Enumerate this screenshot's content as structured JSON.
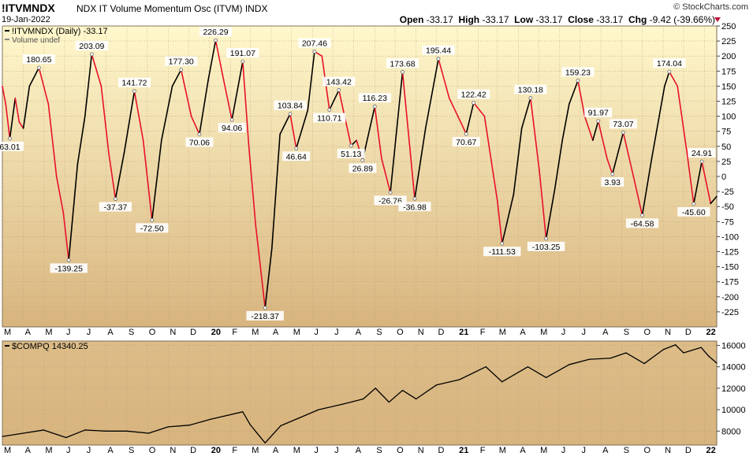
{
  "header": {
    "symbol": "!ITVMNDX",
    "description": "NDX IT Volume Momentum Osc (ITVM)  INDX",
    "date": "19-Jan-2022",
    "credit": "© StockCharts.com",
    "open_label": "Open",
    "open": "-33.17",
    "high_label": "High",
    "high": "-33.17",
    "low_label": "Low",
    "low": "-33.17",
    "close_label": "Close",
    "close": "-33.17",
    "chg_label": "Chg",
    "chg": "-9.42 (-39.66%)"
  },
  "colors": {
    "panel_top": "#fff8cc",
    "panel_bottom": "#d8b47e",
    "rising": "#000000",
    "falling": "#e8102a",
    "grid": "#b8a07a"
  },
  "chart_data": [
    {
      "type": "line",
      "legend": [
        "!ITVMNDX (Daily) -33.17",
        "Volume undef"
      ],
      "ylim": [
        -250,
        250
      ],
      "yticks": [
        250,
        225,
        200,
        175,
        150,
        125,
        100,
        75,
        50,
        25,
        0,
        -25,
        -50,
        -75,
        -100,
        -125,
        -150,
        -175,
        -200,
        -225
      ],
      "xticks": [
        "M",
        "A",
        "M",
        "J",
        "J",
        "A",
        "S",
        "O",
        "N",
        "D",
        "20",
        "F",
        "M",
        "A",
        "M",
        "J",
        "J",
        "A",
        "S",
        "O",
        "N",
        "D",
        "21",
        "F",
        "M",
        "A",
        "M",
        "J",
        "J",
        "A",
        "S",
        "O",
        "N",
        "D",
        "22"
      ],
      "x_start": "2019-03-01",
      "x_end": "2022-01-19",
      "series": [
        {
          "points": [
            [
              "2019-03-01",
              150
            ],
            [
              "2019-03-06",
              120
            ],
            [
              "2019-03-12",
              63.01
            ],
            [
              "2019-03-20",
              130
            ],
            [
              "2019-03-26",
              90
            ],
            [
              "2019-04-01",
              80
            ],
            [
              "2019-04-10",
              150
            ],
            [
              "2019-04-24",
              180.65
            ],
            [
              "2019-05-08",
              120
            ],
            [
              "2019-05-20",
              0
            ],
            [
              "2019-05-30",
              -60
            ],
            [
              "2019-06-07",
              -139.25
            ],
            [
              "2019-06-20",
              20
            ],
            [
              "2019-07-01",
              100
            ],
            [
              "2019-07-11",
              203.09
            ],
            [
              "2019-07-25",
              150
            ],
            [
              "2019-08-05",
              40
            ],
            [
              "2019-08-15",
              -37.37
            ],
            [
              "2019-08-28",
              40
            ],
            [
              "2019-09-12",
              141.72
            ],
            [
              "2019-09-25",
              60
            ],
            [
              "2019-10-08",
              -72.5
            ],
            [
              "2019-10-22",
              60
            ],
            [
              "2019-11-07",
              150
            ],
            [
              "2019-11-20",
              177.3
            ],
            [
              "2019-12-05",
              100
            ],
            [
              "2019-12-17",
              70.06
            ],
            [
              "2019-12-30",
              160
            ],
            [
              "2020-01-10",
              226.29
            ],
            [
              "2020-01-20",
              170
            ],
            [
              "2020-02-03",
              94.06
            ],
            [
              "2020-02-19",
              191.07
            ],
            [
              "2020-02-28",
              50
            ],
            [
              "2020-03-09",
              -80
            ],
            [
              "2020-03-23",
              -218.37
            ],
            [
              "2020-04-02",
              -120
            ],
            [
              "2020-04-14",
              70
            ],
            [
              "2020-04-29",
              103.84
            ],
            [
              "2020-05-08",
              46.64
            ],
            [
              "2020-05-25",
              110
            ],
            [
              "2020-06-04",
              207.46
            ],
            [
              "2020-06-15",
              200
            ],
            [
              "2020-06-26",
              110.71
            ],
            [
              "2020-07-10",
              143.42
            ],
            [
              "2020-07-28",
              51.13
            ],
            [
              "2020-08-05",
              60
            ],
            [
              "2020-08-14",
              26.89
            ],
            [
              "2020-09-01",
              116.23
            ],
            [
              "2020-09-11",
              30
            ],
            [
              "2020-09-24",
              -26.76
            ],
            [
              "2020-10-12",
              173.68
            ],
            [
              "2020-10-30",
              -36.98
            ],
            [
              "2020-11-15",
              80
            ],
            [
              "2020-12-04",
              195.44
            ],
            [
              "2020-12-20",
              130
            ],
            [
              "2021-01-06",
              90
            ],
            [
              "2021-01-14",
              70.67
            ],
            [
              "2021-01-25",
              122.42
            ],
            [
              "2021-02-10",
              100
            ],
            [
              "2021-03-01",
              -40
            ],
            [
              "2021-03-08",
              -111.53
            ],
            [
              "2021-03-25",
              -30
            ],
            [
              "2021-04-06",
              80
            ],
            [
              "2021-04-19",
              130.18
            ],
            [
              "2021-05-02",
              10
            ],
            [
              "2021-05-12",
              -103.25
            ],
            [
              "2021-05-25",
              -20
            ],
            [
              "2021-06-05",
              60
            ],
            [
              "2021-06-15",
              120
            ],
            [
              "2021-06-28",
              159.23
            ],
            [
              "2021-07-08",
              100
            ],
            [
              "2021-07-20",
              60
            ],
            [
              "2021-07-28",
              91.97
            ],
            [
              "2021-08-10",
              30
            ],
            [
              "2021-08-18",
              3.93
            ],
            [
              "2021-09-03",
              73.07
            ],
            [
              "2021-09-18",
              0
            ],
            [
              "2021-10-01",
              -64.58
            ],
            [
              "2021-10-15",
              30
            ],
            [
              "2021-11-03",
              150
            ],
            [
              "2021-11-10",
              174.04
            ],
            [
              "2021-11-22",
              150
            ],
            [
              "2021-12-06",
              40
            ],
            [
              "2021-12-16",
              -45.6
            ],
            [
              "2021-12-28",
              24.91
            ],
            [
              "2022-01-10",
              -45
            ],
            [
              "2022-01-19",
              -33.17
            ]
          ]
        }
      ],
      "annotations": [
        {
          "date": "2019-03-12",
          "value": 63.01,
          "label": "63.01",
          "pos": "below"
        },
        {
          "date": "2019-04-24",
          "value": 180.65,
          "label": "180.65",
          "pos": "above"
        },
        {
          "date": "2019-06-07",
          "value": -139.25,
          "label": "-139.25",
          "pos": "below"
        },
        {
          "date": "2019-07-11",
          "value": 203.09,
          "label": "203.09",
          "pos": "above"
        },
        {
          "date": "2019-08-15",
          "value": -37.37,
          "label": "-37.37",
          "pos": "below"
        },
        {
          "date": "2019-09-12",
          "value": 141.72,
          "label": "141.72",
          "pos": "above"
        },
        {
          "date": "2019-10-08",
          "value": -72.5,
          "label": "-72.50",
          "pos": "below"
        },
        {
          "date": "2019-11-20",
          "value": 177.3,
          "label": "177.30",
          "pos": "above"
        },
        {
          "date": "2019-12-17",
          "value": 70.06,
          "label": "70.06",
          "pos": "below"
        },
        {
          "date": "2020-01-10",
          "value": 226.29,
          "label": "226.29",
          "pos": "above"
        },
        {
          "date": "2020-02-03",
          "value": 94.06,
          "label": "94.06",
          "pos": "below"
        },
        {
          "date": "2020-02-19",
          "value": 191.07,
          "label": "191.07",
          "pos": "above"
        },
        {
          "date": "2020-03-23",
          "value": -218.37,
          "label": "-218.37",
          "pos": "below"
        },
        {
          "date": "2020-04-29",
          "value": 103.84,
          "label": "103.84",
          "pos": "above"
        },
        {
          "date": "2020-05-08",
          "value": 46.64,
          "label": "46.64",
          "pos": "below"
        },
        {
          "date": "2020-06-04",
          "value": 207.46,
          "label": "207.46",
          "pos": "above"
        },
        {
          "date": "2020-06-26",
          "value": 110.71,
          "label": "110.71",
          "pos": "below"
        },
        {
          "date": "2020-07-10",
          "value": 143.42,
          "label": "143.42",
          "pos": "above"
        },
        {
          "date": "2020-07-28",
          "value": 51.13,
          "label": "51.13",
          "pos": "below"
        },
        {
          "date": "2020-08-14",
          "value": 26.89,
          "label": "26.89",
          "pos": "below"
        },
        {
          "date": "2020-09-01",
          "value": 116.23,
          "label": "116.23",
          "pos": "above"
        },
        {
          "date": "2020-09-24",
          "value": -26.76,
          "label": "-26.76",
          "pos": "below"
        },
        {
          "date": "2020-10-12",
          "value": 173.68,
          "label": "173.68",
          "pos": "above"
        },
        {
          "date": "2020-10-30",
          "value": -36.98,
          "label": "-36.98",
          "pos": "below"
        },
        {
          "date": "2020-12-04",
          "value": 195.44,
          "label": "195.44",
          "pos": "above"
        },
        {
          "date": "2021-01-14",
          "value": 70.67,
          "label": "70.67",
          "pos": "below"
        },
        {
          "date": "2021-01-25",
          "value": 122.42,
          "label": "122.42",
          "pos": "above"
        },
        {
          "date": "2021-03-08",
          "value": -111.53,
          "label": "-111.53",
          "pos": "below"
        },
        {
          "date": "2021-04-19",
          "value": 130.18,
          "label": "130.18",
          "pos": "above"
        },
        {
          "date": "2021-05-12",
          "value": -103.25,
          "label": "-103.25",
          "pos": "below"
        },
        {
          "date": "2021-06-28",
          "value": 159.23,
          "label": "159.23",
          "pos": "above"
        },
        {
          "date": "2021-07-28",
          "value": 91.97,
          "label": "91.97",
          "pos": "above"
        },
        {
          "date": "2021-08-18",
          "value": 3.93,
          "label": "3.93",
          "pos": "below"
        },
        {
          "date": "2021-09-03",
          "value": 73.07,
          "label": "73.07",
          "pos": "above"
        },
        {
          "date": "2021-10-01",
          "value": -64.58,
          "label": "-64.58",
          "pos": "below"
        },
        {
          "date": "2021-11-10",
          "value": 174.04,
          "label": "174.04",
          "pos": "above"
        },
        {
          "date": "2021-12-16",
          "value": -45.6,
          "label": "-45.60",
          "pos": "below"
        },
        {
          "date": "2021-12-28",
          "value": 24.91,
          "label": "24.91",
          "pos": "above"
        }
      ],
      "grid": true
    },
    {
      "type": "line",
      "legend": [
        "$COMPQ 14340.25"
      ],
      "ylim": [
        6700,
        16400
      ],
      "yticks": [
        16000,
        14000,
        12000,
        10000,
        8000
      ],
      "xticks": [
        "M",
        "A",
        "M",
        "J",
        "J",
        "A",
        "S",
        "O",
        "N",
        "D",
        "20",
        "F",
        "M",
        "A",
        "M",
        "J",
        "J",
        "A",
        "S",
        "O",
        "N",
        "D",
        "21",
        "F",
        "M",
        "A",
        "M",
        "J",
        "J",
        "A",
        "S",
        "O",
        "N",
        "D",
        "22"
      ],
      "series": [
        {
          "points": [
            [
              "2019-03-01",
              7500
            ],
            [
              "2019-04-01",
              7800
            ],
            [
              "2019-05-01",
              8100
            ],
            [
              "2019-06-03",
              7400
            ],
            [
              "2019-07-01",
              8100
            ],
            [
              "2019-08-01",
              8000
            ],
            [
              "2019-09-01",
              8000
            ],
            [
              "2019-10-03",
              7800
            ],
            [
              "2019-11-01",
              8400
            ],
            [
              "2019-12-02",
              8550
            ],
            [
              "2020-01-02",
              9100
            ],
            [
              "2020-02-19",
              9800
            ],
            [
              "2020-03-01",
              8600
            ],
            [
              "2020-03-10",
              7900
            ],
            [
              "2020-03-23",
              6900
            ],
            [
              "2020-04-15",
              8500
            ],
            [
              "2020-05-15",
              9300
            ],
            [
              "2020-06-10",
              10000
            ],
            [
              "2020-07-15",
              10500
            ],
            [
              "2020-08-15",
              11000
            ],
            [
              "2020-09-02",
              12000
            ],
            [
              "2020-09-22",
              10700
            ],
            [
              "2020-10-12",
              11800
            ],
            [
              "2020-11-01",
              11000
            ],
            [
              "2020-12-01",
              12300
            ],
            [
              "2021-01-04",
              12800
            ],
            [
              "2021-02-12",
              14000
            ],
            [
              "2021-03-08",
              12600
            ],
            [
              "2021-04-15",
              14000
            ],
            [
              "2021-05-12",
              13000
            ],
            [
              "2021-06-15",
              14200
            ],
            [
              "2021-07-15",
              14700
            ],
            [
              "2021-08-15",
              14800
            ],
            [
              "2021-09-07",
              15300
            ],
            [
              "2021-10-04",
              14300
            ],
            [
              "2021-11-01",
              15600
            ],
            [
              "2021-11-19",
              16050
            ],
            [
              "2021-12-01",
              15300
            ],
            [
              "2021-12-27",
              15800
            ],
            [
              "2022-01-07",
              15000
            ],
            [
              "2022-01-19",
              14340.25
            ]
          ]
        }
      ],
      "grid": true
    }
  ]
}
